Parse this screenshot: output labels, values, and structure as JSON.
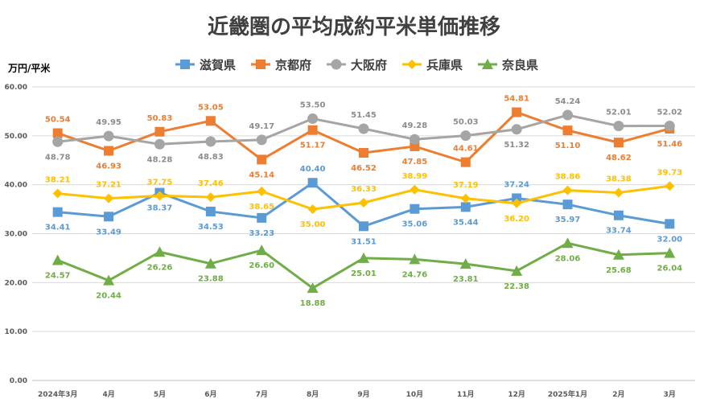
{
  "chart_data": {
    "type": "line",
    "title": "近畿圏の平均成約平米単価推移",
    "ylabel": "万円/平米",
    "xlabel": "",
    "ylim": [
      0,
      60
    ],
    "yticks": [
      "0.00",
      "10.00",
      "20.00",
      "30.00",
      "40.00",
      "50.00",
      "60.00"
    ],
    "grid": true,
    "legend_position": "top",
    "categories": [
      "2024年3月",
      "4月",
      "5月",
      "6月",
      "7月",
      "8月",
      "9月",
      "10月",
      "11月",
      "12月",
      "2025年1月",
      "2月",
      "3月"
    ],
    "series": [
      {
        "name": "滋賀県",
        "color": "#5b9bd5",
        "marker": "square",
        "values": [
          34.41,
          33.49,
          38.37,
          34.53,
          33.23,
          40.4,
          31.51,
          35.06,
          35.44,
          37.24,
          35.97,
          33.74,
          32.0
        ],
        "labels": [
          "34.41",
          "33.49",
          "38.37",
          "34.53",
          "33.23",
          "40.40",
          "31.51",
          "35.06",
          "35.44",
          "37.24",
          "35.97",
          "33.74",
          "32.00"
        ],
        "label_pos": [
          "below",
          "below",
          "below",
          "below",
          "below",
          "above",
          "below",
          "below",
          "below",
          "above",
          "below",
          "below",
          "below"
        ]
      },
      {
        "name": "京都府",
        "color": "#ed7d31",
        "marker": "square",
        "values": [
          50.54,
          46.93,
          50.83,
          53.05,
          45.14,
          51.17,
          46.52,
          47.85,
          44.61,
          54.81,
          51.1,
          48.62,
          51.46
        ],
        "labels": [
          "50.54",
          "46.93",
          "50.83",
          "53.05",
          "45.14",
          "51.17",
          "46.52",
          "47.85",
          "44.61",
          "54.81",
          "51.10",
          "48.62",
          "51.46"
        ],
        "label_pos": [
          "above",
          "below",
          "above",
          "above",
          "below",
          "below",
          "below",
          "below",
          "above",
          "above",
          "below",
          "below",
          "below"
        ]
      },
      {
        "name": "大阪府",
        "color": "#a5a5a5",
        "marker": "circle",
        "values": [
          48.78,
          49.95,
          48.28,
          48.83,
          49.17,
          53.5,
          51.45,
          49.28,
          50.03,
          51.32,
          54.24,
          52.01,
          52.02
        ],
        "labels": [
          "48.78",
          "49.95",
          "48.28",
          "48.83",
          "49.17",
          "53.50",
          "51.45",
          "49.28",
          "50.03",
          "51.32",
          "54.24",
          "52.01",
          "52.02"
        ],
        "label_pos": [
          "below",
          "above",
          "below",
          "below",
          "above",
          "above",
          "above",
          "above",
          "above",
          "below",
          "above",
          "above",
          "above"
        ]
      },
      {
        "name": "兵庫県",
        "color": "#ffc000",
        "marker": "diamond",
        "values": [
          38.21,
          37.21,
          37.75,
          37.46,
          38.65,
          35.0,
          36.33,
          38.99,
          37.19,
          36.2,
          38.86,
          38.38,
          39.73
        ],
        "labels": [
          "38.21",
          "37.21",
          "37.75",
          "37.46",
          "38.65",
          "35.00",
          "36.33",
          "38.99",
          "37.19",
          "36.20",
          "38.86",
          "38.38",
          "39.73"
        ],
        "label_pos": [
          "above",
          "above",
          "above",
          "above",
          "below",
          "below",
          "above",
          "above",
          "above",
          "below",
          "above",
          "above",
          "above"
        ]
      },
      {
        "name": "奈良県",
        "color": "#70ad47",
        "marker": "triangle",
        "values": [
          24.57,
          20.44,
          26.26,
          23.88,
          26.6,
          18.88,
          25.01,
          24.76,
          23.81,
          22.38,
          28.06,
          25.68,
          26.04
        ],
        "labels": [
          "24.57",
          "20.44",
          "26.26",
          "23.88",
          "26.60",
          "18.88",
          "25.01",
          "24.76",
          "23.81",
          "22.38",
          "28.06",
          "25.68",
          "26.04"
        ],
        "label_pos": [
          "below",
          "below",
          "below",
          "below",
          "below",
          "below",
          "below",
          "below",
          "below",
          "below",
          "below",
          "below",
          "below"
        ]
      }
    ]
  }
}
